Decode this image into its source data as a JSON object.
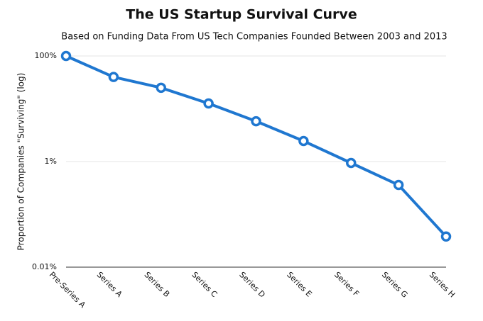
{
  "chart_data": {
    "type": "line",
    "title": "The US Startup Survival Curve",
    "subtitle": "Based on Funding Data From US Tech Companies Founded Between 2003 and 2013",
    "y_label": "Proportion of Companies \"Surviving\" (log)",
    "categories": [
      "Pre-Series A",
      "Series A",
      "Series B",
      "Series C",
      "Series D",
      "Series E",
      "Series F",
      "Series G",
      "Series H"
    ],
    "series": [
      {
        "name": "Survival",
        "color": "#1f77d0",
        "values": [
          100,
          40,
          25,
          12.6,
          5.8,
          2.45,
          0.94,
          0.36,
          0.038
        ]
      }
    ],
    "log_scale": true,
    "ylim": [
      0.01,
      100
    ],
    "yticks": [
      {
        "value": 0.01,
        "label": "0.01%"
      },
      {
        "value": 1,
        "label": "1%"
      },
      {
        "value": 100,
        "label": "100%"
      }
    ],
    "grid": true
  }
}
